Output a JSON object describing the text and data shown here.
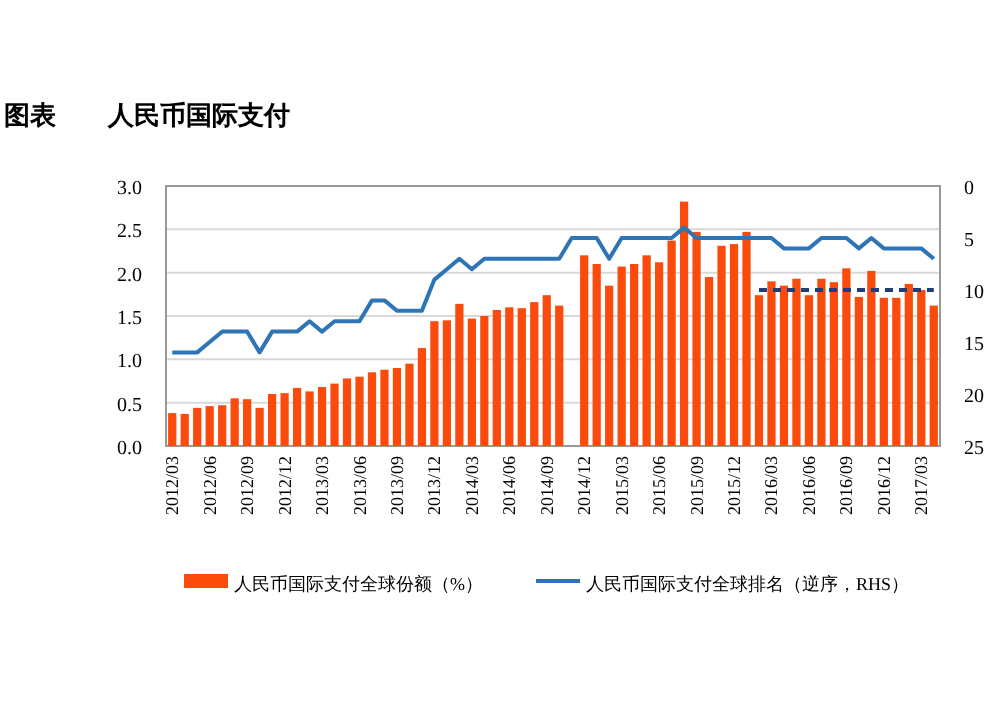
{
  "chart_data": {
    "type": "bar",
    "title": "图表　　人民币国际支付",
    "categories": [
      "2012/03",
      null,
      null,
      "2012/06",
      null,
      null,
      "2012/09",
      null,
      null,
      "2012/12",
      null,
      null,
      "2013/03",
      null,
      null,
      "2013/06",
      null,
      null,
      "2013/09",
      null,
      null,
      "2013/12",
      null,
      null,
      "2014/03",
      null,
      null,
      "2014/06",
      null,
      null,
      "2014/09",
      null,
      null,
      "2014/12",
      null,
      null,
      "2015/03",
      null,
      null,
      "2015/06",
      null,
      null,
      "2015/09",
      null,
      null,
      "2015/12",
      null,
      null,
      "2016/03",
      null,
      null,
      "2016/06",
      null,
      null,
      "2016/09",
      null,
      null,
      "2016/12",
      null,
      null,
      "2017/03",
      null
    ],
    "series": [
      {
        "name": "人民币国际支付全球份额（%）",
        "color": "#fa4b0c",
        "values": [
          0.38,
          0.37,
          0.44,
          0.46,
          0.47,
          0.55,
          0.54,
          0.44,
          0.6,
          0.61,
          0.67,
          0.63,
          0.68,
          0.72,
          0.78,
          0.8,
          0.85,
          0.88,
          0.9,
          0.95,
          1.13,
          1.44,
          1.45,
          1.64,
          1.47,
          1.5,
          1.57,
          1.6,
          1.59,
          1.66,
          1.74,
          1.62,
          null,
          2.2,
          2.1,
          1.85,
          2.07,
          2.1,
          2.2,
          2.12,
          2.37,
          2.82,
          2.47,
          1.95,
          2.31,
          2.33,
          2.47,
          1.74,
          1.9,
          1.85,
          1.93,
          1.74,
          1.93,
          1.89,
          2.05,
          1.72,
          2.02,
          1.71,
          1.71,
          1.87,
          1.8,
          1.62
        ]
      },
      {
        "name": "人民币国际支付全球排名（逆序，RHS）",
        "type": "line",
        "axis": "y2",
        "color": "#2e75b6",
        "values": [
          16,
          16,
          16,
          15,
          14,
          14,
          14,
          16,
          14,
          14,
          14,
          13,
          14,
          13,
          13,
          13,
          11,
          11,
          12,
          12,
          12,
          9,
          8,
          7,
          8,
          7,
          7,
          7,
          7,
          7,
          7,
          7,
          5,
          5,
          5,
          7,
          5,
          5,
          5,
          5,
          5,
          4,
          5,
          5,
          5,
          5,
          5,
          5,
          5,
          6,
          6,
          6,
          5,
          5,
          5,
          6,
          5,
          6,
          6,
          6,
          6,
          7
        ]
      },
      {
        "type": "line",
        "axis": "y2",
        "color": "#1f3d7a",
        "line_style": "dashed",
        "values": [
          null,
          null,
          null,
          null,
          null,
          null,
          null,
          null,
          null,
          null,
          null,
          null,
          null,
          null,
          null,
          null,
          null,
          null,
          null,
          null,
          null,
          null,
          null,
          null,
          null,
          null,
          null,
          null,
          null,
          null,
          null,
          null,
          null,
          null,
          null,
          null,
          null,
          null,
          null,
          null,
          null,
          null,
          null,
          null,
          null,
          null,
          null,
          10,
          10,
          10,
          10,
          10,
          10,
          10,
          10,
          10,
          10,
          10,
          10,
          10,
          10,
          10
        ]
      }
    ],
    "ylim": [
      0,
      3
    ],
    "yticks": [
      {
        "value": 0,
        "label": "0.0"
      },
      {
        "value": 0.5,
        "label": "0.5"
      },
      {
        "value": 1,
        "label": "1.0"
      },
      {
        "value": 1.5,
        "label": "1.5"
      },
      {
        "value": 2,
        "label": "2.0"
      },
      {
        "value": 2.5,
        "label": "2.5"
      },
      {
        "value": 3,
        "label": "3.0"
      }
    ],
    "y2lim": [
      25,
      0
    ],
    "y2ticks": [
      0,
      5,
      10,
      15,
      20,
      25
    ],
    "grid": "y",
    "legend": "bottom"
  }
}
